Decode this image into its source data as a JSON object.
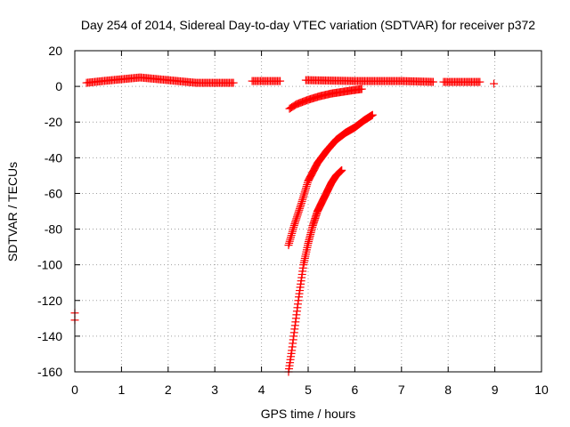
{
  "chart_data": {
    "type": "scatter",
    "title": "Day 254 of 2014, Sidereal Day-to-day VTEC variation (SDTVAR) for receiver p372",
    "xlabel": "GPS time / hours",
    "ylabel": "SDTVAR / TECUs",
    "xlim": [
      0,
      10
    ],
    "ylim": [
      -160,
      20
    ],
    "xticks": [
      0,
      1,
      2,
      3,
      4,
      5,
      6,
      7,
      8,
      9,
      10
    ],
    "yticks": [
      -160,
      -140,
      -120,
      -100,
      -80,
      -60,
      -40,
      -20,
      0,
      20
    ],
    "grid": true,
    "legend": "none",
    "marker": "plus",
    "color": "#ff0000",
    "series": [
      {
        "segments": [
          {
            "x_start": 0.25,
            "x_end": 3.4,
            "x_step": 0.03,
            "points": [
              [
                0.25,
                2
              ],
              [
                0.6,
                3
              ],
              [
                1.0,
                4
              ],
              [
                1.4,
                5
              ],
              [
                1.8,
                4
              ],
              [
                2.2,
                3
              ],
              [
                2.6,
                2
              ],
              [
                3.0,
                2
              ],
              [
                3.4,
                2
              ]
            ]
          },
          {
            "x_start": 3.8,
            "x_end": 4.4,
            "x_step": 0.03,
            "points": [
              [
                3.8,
                3
              ],
              [
                4.4,
                3
              ]
            ]
          },
          {
            "x_start": 4.95,
            "x_end": 7.7,
            "x_step": 0.03,
            "points": [
              [
                4.95,
                3.5
              ],
              [
                6.0,
                3
              ],
              [
                7.0,
                3
              ],
              [
                7.7,
                2.5
              ]
            ]
          },
          {
            "x_start": 7.9,
            "x_end": 8.7,
            "x_step": 0.03,
            "points": [
              [
                7.9,
                2.5
              ],
              [
                8.7,
                2.5
              ]
            ]
          },
          {
            "x_start": 8.98,
            "x_end": 8.98,
            "x_step": 0.03,
            "points": [
              [
                8.98,
                1.5
              ]
            ]
          },
          {
            "x_start": 0.0,
            "x_end": 0.0,
            "x_step": 0.03,
            "points": [
              [
                0.0,
                -127
              ],
              [
                0.0,
                -131
              ]
            ]
          },
          {
            "x_start": 4.6,
            "x_end": 6.15,
            "x_step": 0.025,
            "points": [
              [
                4.6,
                -12.5
              ],
              [
                4.75,
                -10
              ],
              [
                5.0,
                -7.5
              ],
              [
                5.25,
                -5.5
              ],
              [
                5.5,
                -4
              ],
              [
                5.75,
                -3
              ],
              [
                6.0,
                -2
              ],
              [
                6.15,
                -1.5
              ]
            ]
          },
          {
            "x_start": 4.58,
            "x_end": 6.38,
            "x_step": 0.012,
            "points": [
              [
                4.58,
                -89
              ],
              [
                4.7,
                -78
              ],
              [
                4.85,
                -66
              ],
              [
                5.0,
                -53
              ],
              [
                5.2,
                -43
              ],
              [
                5.4,
                -36
              ],
              [
                5.6,
                -30
              ],
              [
                5.8,
                -26
              ],
              [
                6.0,
                -23
              ],
              [
                6.2,
                -19
              ],
              [
                6.38,
                -16
              ]
            ]
          },
          {
            "x_start": 4.58,
            "x_end": 5.72,
            "x_step": 0.01,
            "points": [
              [
                4.58,
                -160
              ],
              [
                4.65,
                -148
              ],
              [
                4.7,
                -138
              ],
              [
                4.8,
                -118
              ],
              [
                4.9,
                -100
              ],
              [
                5.0,
                -88
              ],
              [
                5.1,
                -78
              ],
              [
                5.2,
                -70
              ],
              [
                5.35,
                -62
              ],
              [
                5.5,
                -54
              ],
              [
                5.6,
                -50
              ],
              [
                5.72,
                -47
              ]
            ]
          }
        ]
      }
    ]
  }
}
